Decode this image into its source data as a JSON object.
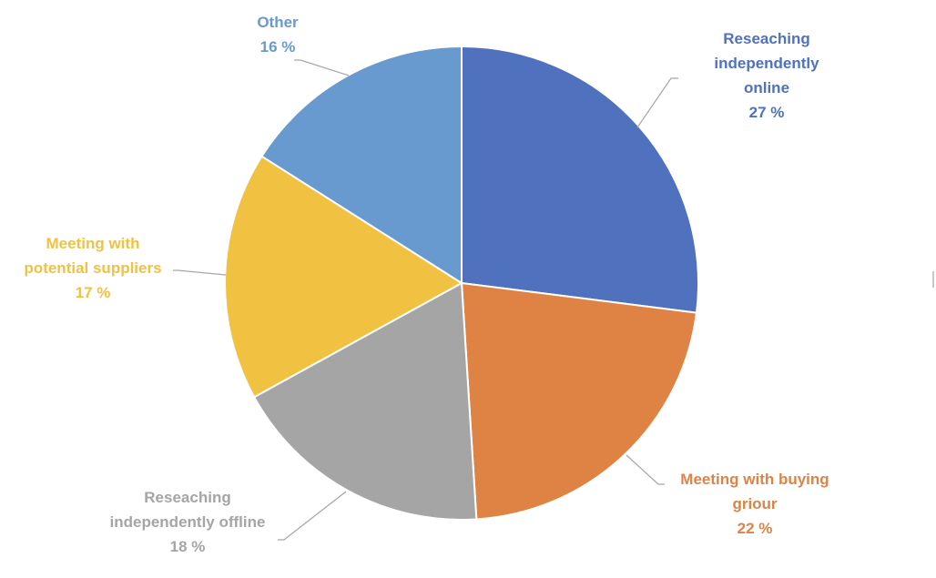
{
  "chart_data": {
    "type": "pie",
    "title": "",
    "unit": "%",
    "slices": [
      {
        "label_lines": [
          "Reseaching",
          "independently",
          "online"
        ],
        "value": 27,
        "value_text": "27 %",
        "color": "#4F71BE"
      },
      {
        "label_lines": [
          "Meeting with buying",
          "griour"
        ],
        "value": 22,
        "value_text": "22 %",
        "color": "#DE8344"
      },
      {
        "label_lines": [
          "Reseaching",
          "independently offline"
        ],
        "value": 18,
        "value_text": "18 %",
        "color": "#A5A5A5"
      },
      {
        "label_lines": [
          "Meeting with",
          "potential suppliers"
        ],
        "value": 17,
        "value_text": "17 %",
        "color": "#F1C142"
      },
      {
        "label_lines": [
          "Other"
        ],
        "value": 16,
        "value_text": "16 %",
        "color": "#6899CF"
      }
    ],
    "start_angle": "12 o'clock",
    "direction": "clockwise",
    "legend": "none",
    "data_labels": "outside with leader lines"
  }
}
